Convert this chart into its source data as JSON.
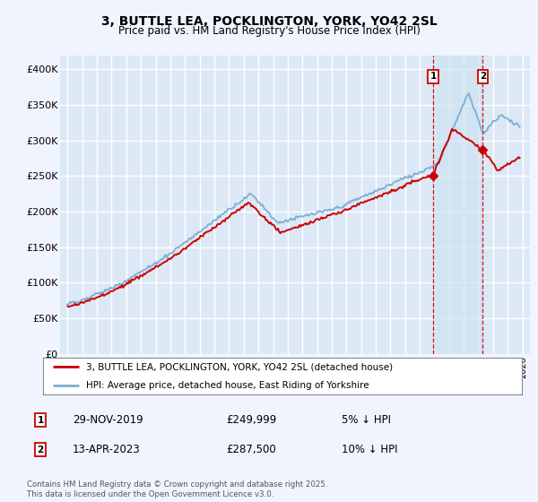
{
  "title": "3, BUTTLE LEA, POCKLINGTON, YORK, YO42 2SL",
  "subtitle": "Price paid vs. HM Land Registry's House Price Index (HPI)",
  "ylabel_ticks": [
    "£0",
    "£50K",
    "£100K",
    "£150K",
    "£200K",
    "£250K",
    "£300K",
    "£350K",
    "£400K"
  ],
  "ytick_values": [
    0,
    50000,
    100000,
    150000,
    200000,
    250000,
    300000,
    350000,
    400000
  ],
  "ylim": [
    0,
    420000
  ],
  "xlim_start": 1994.5,
  "xlim_end": 2026.5,
  "background_color": "#f0f4ff",
  "plot_bg_color": "#dce8f5",
  "grid_color": "#ffffff",
  "line_color_red": "#cc0000",
  "line_color_blue": "#7ab0d4",
  "shade_color": "#cce0f0",
  "sale1_date": "29-NOV-2019",
  "sale1_price": "£249,999",
  "sale1_hpi": "5% ↓ HPI",
  "sale1_x": 2019.92,
  "sale1_y": 249999,
  "sale2_date": "13-APR-2023",
  "sale2_price": "£287,500",
  "sale2_hpi": "10% ↓ HPI",
  "sale2_x": 2023.29,
  "sale2_y": 287500,
  "legend_label_red": "3, BUTTLE LEA, POCKLINGTON, YORK, YO42 2SL (detached house)",
  "legend_label_blue": "HPI: Average price, detached house, East Riding of Yorkshire",
  "footer_text": "Contains HM Land Registry data © Crown copyright and database right 2025.\nThis data is licensed under the Open Government Licence v3.0."
}
